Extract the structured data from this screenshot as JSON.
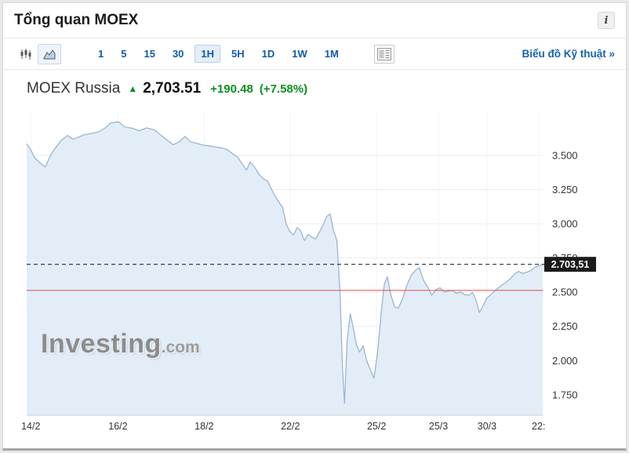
{
  "header": {
    "title": "Tổng quan MOEX",
    "info_icon": "i"
  },
  "toolbar": {
    "chart_type_buttons": [
      {
        "name": "candlestick-chart-icon",
        "active": false
      },
      {
        "name": "area-chart-icon",
        "active": true
      }
    ],
    "intervals": [
      {
        "label": "1",
        "active": false
      },
      {
        "label": "5",
        "active": false
      },
      {
        "label": "15",
        "active": false
      },
      {
        "label": "30",
        "active": false
      },
      {
        "label": "1H",
        "active": true
      },
      {
        "label": "5H",
        "active": false
      },
      {
        "label": "1D",
        "active": false
      },
      {
        "label": "1W",
        "active": false
      },
      {
        "label": "1M",
        "active": false
      }
    ],
    "panel_icon": "chart-panel-icon",
    "technical_link": "Biểu đồ Kỹ thuật »"
  },
  "quote": {
    "name": "MOEX Russia",
    "arrow": "▲",
    "last": "2,703.51",
    "change": "+190.48",
    "change_percent": "(+7.58%)"
  },
  "watermark": {
    "brand": "Investing",
    "suffix": ".com"
  },
  "colors": {
    "accent_blue": "#0e5ba8",
    "green": "#0d8f20",
    "red_line": "#e14b4b",
    "area_fill": "#e2edf8",
    "area_line": "#9cb6ce",
    "grid": "#ededed",
    "vgrid": "#f3f3f3",
    "axis": "#cccccc",
    "dashed_line": "#2b2b2b",
    "last_price_tag_bg": "#1b1b1b"
  },
  "chart_data": {
    "type": "area",
    "title": "MOEX Russia",
    "timeframe": "1H",
    "legend": false,
    "grid": true,
    "ylim": [
      1600,
      3815
    ],
    "last_price": 2703.51,
    "last_price_label": "2.703,51",
    "previous_close": 2513.03,
    "change": 190.48,
    "change_percent": 7.58,
    "y_ticks": [
      {
        "value": 3500,
        "label": "3.500"
      },
      {
        "value": 3250,
        "label": "3.250"
      },
      {
        "value": 3000,
        "label": "3.000"
      },
      {
        "value": 2750,
        "label": "2.750"
      },
      {
        "value": 2500,
        "label": "2.500"
      },
      {
        "value": 2250,
        "label": "2.250"
      },
      {
        "value": 2000,
        "label": "2.000"
      },
      {
        "value": 1750,
        "label": "1.750"
      }
    ],
    "x_ticks": [
      {
        "label": "14/2",
        "pos": 0.008
      },
      {
        "label": "16/2",
        "pos": 0.177
      },
      {
        "label": "18/2",
        "pos": 0.344
      },
      {
        "label": "22/2",
        "pos": 0.511
      },
      {
        "label": "25/2",
        "pos": 0.678
      },
      {
        "label": "25/3",
        "pos": 0.798
      },
      {
        "label": "30/3",
        "pos": 0.892
      },
      {
        "label": "22:",
        "pos": 0.992
      }
    ],
    "series": [
      {
        "name": "MOEX Russia",
        "points": [
          [
            0.0,
            3585
          ],
          [
            0.008,
            3540
          ],
          [
            0.016,
            3480
          ],
          [
            0.026,
            3445
          ],
          [
            0.036,
            3415
          ],
          [
            0.046,
            3500
          ],
          [
            0.056,
            3555
          ],
          [
            0.066,
            3605
          ],
          [
            0.079,
            3645
          ],
          [
            0.09,
            3618
          ],
          [
            0.101,
            3635
          ],
          [
            0.113,
            3652
          ],
          [
            0.125,
            3660
          ],
          [
            0.14,
            3672
          ],
          [
            0.152,
            3700
          ],
          [
            0.163,
            3738
          ],
          [
            0.178,
            3745
          ],
          [
            0.19,
            3708
          ],
          [
            0.205,
            3698
          ],
          [
            0.218,
            3680
          ],
          [
            0.232,
            3700
          ],
          [
            0.247,
            3688
          ],
          [
            0.26,
            3648
          ],
          [
            0.272,
            3612
          ],
          [
            0.284,
            3578
          ],
          [
            0.296,
            3600
          ],
          [
            0.307,
            3638
          ],
          [
            0.318,
            3598
          ],
          [
            0.33,
            3588
          ],
          [
            0.341,
            3575
          ],
          [
            0.353,
            3570
          ],
          [
            0.365,
            3562
          ],
          [
            0.377,
            3555
          ],
          [
            0.389,
            3542
          ],
          [
            0.399,
            3512
          ],
          [
            0.409,
            3488
          ],
          [
            0.419,
            3428
          ],
          [
            0.426,
            3392
          ],
          [
            0.433,
            3452
          ],
          [
            0.441,
            3418
          ],
          [
            0.45,
            3362
          ],
          [
            0.459,
            3328
          ],
          [
            0.467,
            3312
          ],
          [
            0.475,
            3248
          ],
          [
            0.482,
            3198
          ],
          [
            0.489,
            3158
          ],
          [
            0.496,
            3118
          ],
          [
            0.503,
            2998
          ],
          [
            0.51,
            2942
          ],
          [
            0.517,
            2918
          ],
          [
            0.524,
            2972
          ],
          [
            0.531,
            2948
          ],
          [
            0.538,
            2878
          ],
          [
            0.546,
            2922
          ],
          [
            0.553,
            2902
          ],
          [
            0.56,
            2888
          ],
          [
            0.567,
            2938
          ],
          [
            0.574,
            2988
          ],
          [
            0.581,
            3052
          ],
          [
            0.588,
            3072
          ],
          [
            0.594,
            2958
          ],
          [
            0.601,
            2878
          ],
          [
            0.607,
            2518
          ],
          [
            0.612,
            1948
          ],
          [
            0.616,
            1688
          ],
          [
            0.621,
            2148
          ],
          [
            0.627,
            2342
          ],
          [
            0.633,
            2238
          ],
          [
            0.639,
            2118
          ],
          [
            0.645,
            2062
          ],
          [
            0.652,
            2108
          ],
          [
            0.659,
            1998
          ],
          [
            0.666,
            1932
          ],
          [
            0.673,
            1872
          ],
          [
            0.68,
            2058
          ],
          [
            0.687,
            2348
          ],
          [
            0.693,
            2558
          ],
          [
            0.699,
            2612
          ],
          [
            0.706,
            2478
          ],
          [
            0.713,
            2392
          ],
          [
            0.72,
            2382
          ],
          [
            0.728,
            2448
          ],
          [
            0.736,
            2542
          ],
          [
            0.745,
            2622
          ],
          [
            0.754,
            2662
          ],
          [
            0.761,
            2678
          ],
          [
            0.769,
            2588
          ],
          [
            0.777,
            2538
          ],
          [
            0.785,
            2478
          ],
          [
            0.793,
            2518
          ],
          [
            0.801,
            2532
          ],
          [
            0.809,
            2502
          ],
          [
            0.817,
            2508
          ],
          [
            0.825,
            2512
          ],
          [
            0.833,
            2492
          ],
          [
            0.841,
            2502
          ],
          [
            0.849,
            2482
          ],
          [
            0.857,
            2478
          ],
          [
            0.864,
            2498
          ],
          [
            0.871,
            2438
          ],
          [
            0.877,
            2352
          ],
          [
            0.884,
            2398
          ],
          [
            0.891,
            2452
          ],
          [
            0.898,
            2478
          ],
          [
            0.905,
            2502
          ],
          [
            0.913,
            2528
          ],
          [
            0.921,
            2552
          ],
          [
            0.929,
            2572
          ],
          [
            0.937,
            2598
          ],
          [
            0.945,
            2632
          ],
          [
            0.953,
            2652
          ],
          [
            0.961,
            2638
          ],
          [
            0.969,
            2645
          ],
          [
            0.977,
            2658
          ],
          [
            0.985,
            2682
          ],
          [
            0.993,
            2694
          ],
          [
            1.0,
            2703.51
          ]
        ]
      }
    ]
  }
}
